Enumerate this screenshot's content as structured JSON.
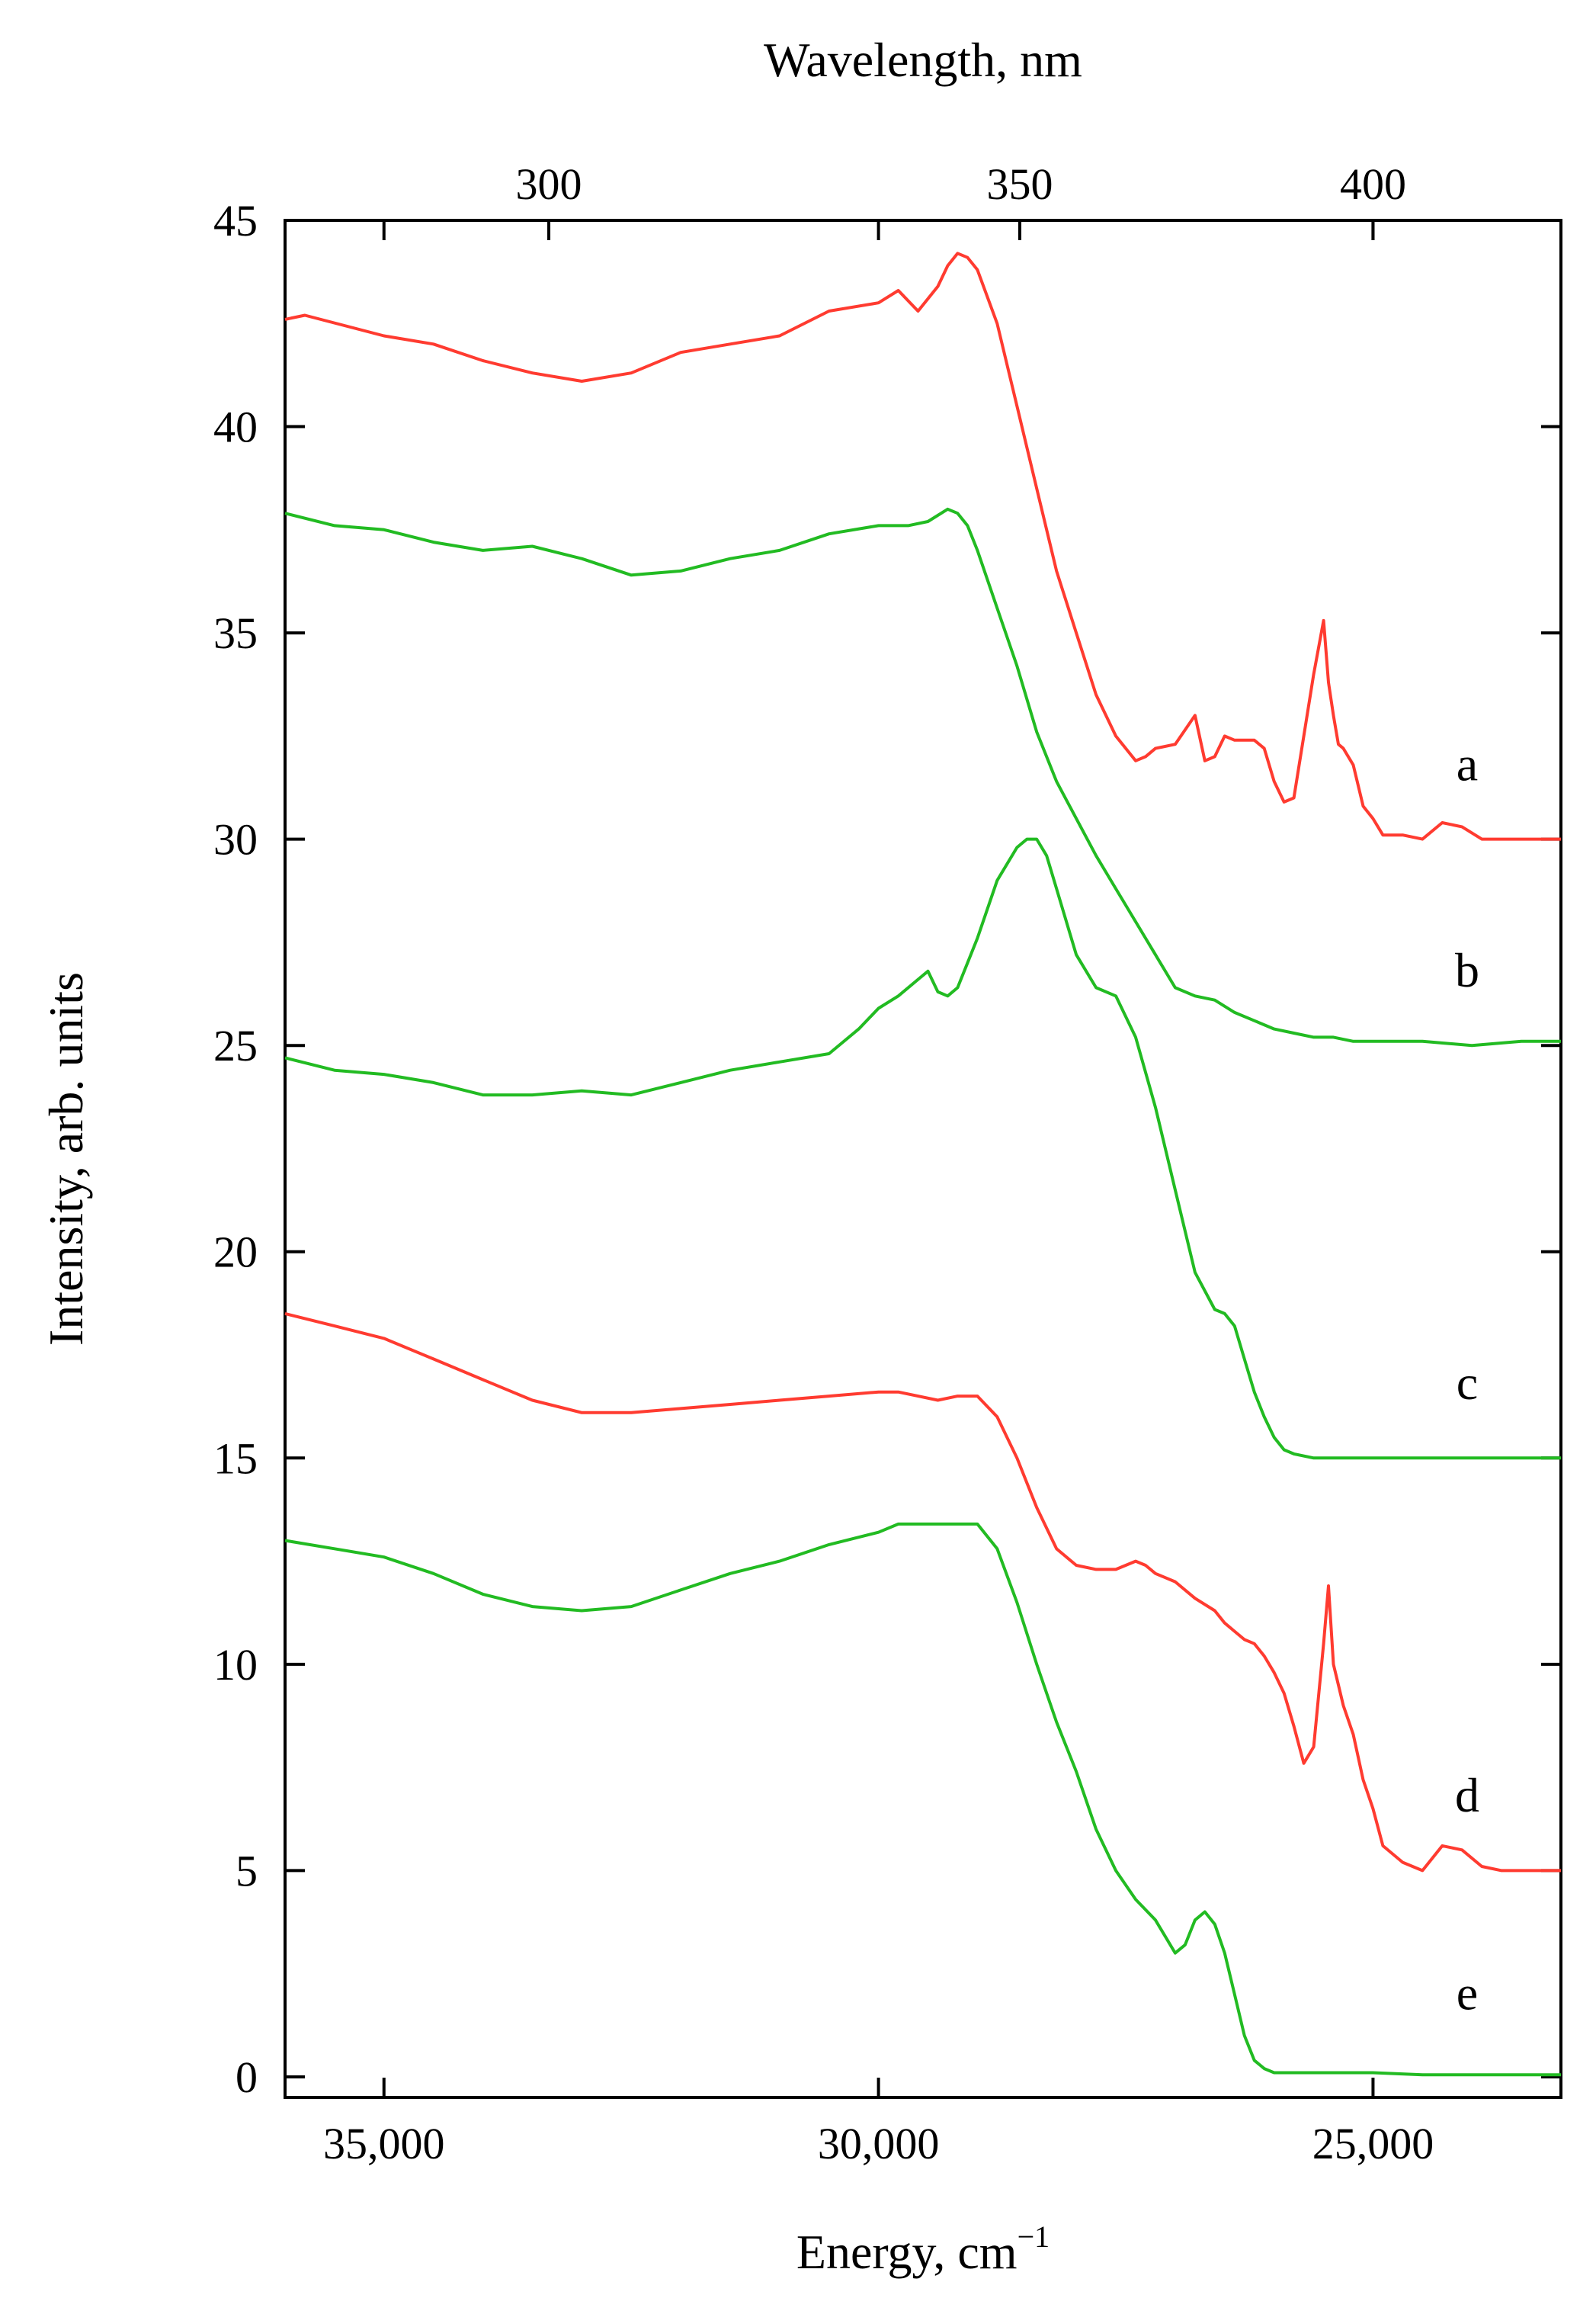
{
  "chart_data": {
    "type": "line",
    "title": "",
    "xlabel": "Energy, cm",
    "xlabel_superscript": "−1",
    "ylabel": "Intensity, arb. units",
    "x2label": "Wavelength, nm",
    "xlim": [
      36000,
      23100
    ],
    "ylim": [
      -0.5,
      45
    ],
    "x_ticks": [
      {
        "value": 35000,
        "label": "35,000"
      },
      {
        "value": 30000,
        "label": "30,000"
      },
      {
        "value": 25000,
        "label": "25,000"
      }
    ],
    "y_ticks": [
      {
        "value": 0,
        "label": "0"
      },
      {
        "value": 5,
        "label": "5"
      },
      {
        "value": 10,
        "label": "10"
      },
      {
        "value": 15,
        "label": "15"
      },
      {
        "value": 20,
        "label": "20"
      },
      {
        "value": 25,
        "label": "25"
      },
      {
        "value": 30,
        "label": "30"
      },
      {
        "value": 35,
        "label": "35"
      },
      {
        "value": 40,
        "label": "40"
      },
      {
        "value": 45,
        "label": "45"
      }
    ],
    "x2_ticks": [
      {
        "value": 300,
        "label": "300"
      },
      {
        "value": 350,
        "label": "350"
      },
      {
        "value": 400,
        "label": "400"
      }
    ],
    "grid": false,
    "series": [
      {
        "name": "a",
        "color": "#ff3b30",
        "label_y": 31.8,
        "x": [
          36000,
          35800,
          35000,
          34500,
          34000,
          33500,
          33000,
          32500,
          32000,
          31500,
          31000,
          30500,
          30000,
          29800,
          29600,
          29400,
          29300,
          29200,
          29100,
          29000,
          28800,
          28600,
          28400,
          28200,
          28000,
          27800,
          27600,
          27400,
          27300,
          27200,
          27000,
          26800,
          26700,
          26600,
          26500,
          26400,
          26300,
          26200,
          26100,
          26000,
          25900,
          25800,
          25700,
          25600,
          25500,
          25450,
          25400,
          25350,
          25300,
          25200,
          25100,
          25000,
          24900,
          24700,
          24500,
          24300,
          24100,
          23900,
          23700,
          23500,
          23100
        ],
        "y": [
          42.6,
          42.7,
          42.2,
          42.0,
          41.6,
          41.3,
          41.1,
          41.3,
          41.8,
          42.0,
          42.2,
          42.8,
          43.0,
          43.3,
          42.8,
          43.4,
          43.9,
          44.2,
          44.1,
          43.8,
          42.5,
          40.5,
          38.5,
          36.5,
          35.0,
          33.5,
          32.5,
          31.9,
          32.0,
          32.2,
          32.3,
          33.0,
          31.9,
          32.0,
          32.5,
          32.4,
          32.4,
          32.4,
          32.2,
          31.4,
          30.9,
          31.0,
          32.5,
          34.0,
          35.3,
          33.8,
          33.0,
          32.3,
          32.2,
          31.8,
          30.8,
          30.5,
          30.1,
          30.1,
          30.0,
          30.4,
          30.3,
          30.0,
          30.0,
          30.0,
          30.0
        ]
      },
      {
        "name": "b",
        "color": "#22bb22",
        "label_y": 26.8,
        "x": [
          36000,
          35500,
          35000,
          34500,
          34000,
          33500,
          33000,
          32500,
          32000,
          31500,
          31000,
          30500,
          30000,
          29700,
          29500,
          29300,
          29200,
          29100,
          29000,
          28800,
          28600,
          28400,
          28200,
          28000,
          27800,
          27600,
          27400,
          27200,
          27000,
          26800,
          26600,
          26400,
          26200,
          26000,
          25800,
          25600,
          25400,
          25200,
          25000,
          24500,
          24000,
          23500,
          23100
        ],
        "y": [
          37.9,
          37.6,
          37.5,
          37.2,
          37.0,
          37.1,
          36.8,
          36.4,
          36.5,
          36.8,
          37.0,
          37.4,
          37.6,
          37.6,
          37.7,
          38.0,
          37.9,
          37.6,
          37.0,
          35.6,
          34.2,
          32.6,
          31.4,
          30.5,
          29.6,
          28.8,
          28.0,
          27.2,
          26.4,
          26.2,
          26.1,
          25.8,
          25.6,
          25.4,
          25.3,
          25.2,
          25.2,
          25.1,
          25.1,
          25.1,
          25.0,
          25.1,
          25.1
        ]
      },
      {
        "name": "c",
        "color": "#22bb22",
        "label_y": 16.8,
        "x": [
          36000,
          35500,
          35000,
          34500,
          34000,
          33500,
          33000,
          32500,
          32000,
          31500,
          31000,
          30500,
          30200,
          30000,
          29800,
          29600,
          29500,
          29400,
          29300,
          29200,
          29000,
          28800,
          28600,
          28500,
          28400,
          28300,
          28200,
          28000,
          27800,
          27600,
          27400,
          27200,
          27000,
          26800,
          26600,
          26500,
          26400,
          26300,
          26200,
          26100,
          26000,
          25900,
          25800,
          25600,
          25400,
          25000,
          24500,
          24000,
          23500,
          23100
        ],
        "y": [
          24.7,
          24.4,
          24.3,
          24.1,
          23.8,
          23.8,
          23.9,
          23.8,
          24.1,
          24.4,
          24.6,
          24.8,
          25.4,
          25.9,
          26.2,
          26.6,
          26.8,
          26.3,
          26.2,
          26.4,
          27.6,
          29.0,
          29.8,
          30.0,
          30.0,
          29.6,
          28.8,
          27.2,
          26.4,
          26.2,
          25.2,
          23.5,
          21.5,
          19.5,
          18.6,
          18.5,
          18.2,
          17.4,
          16.6,
          16.0,
          15.5,
          15.2,
          15.1,
          15.0,
          15.0,
          15.0,
          15.0,
          15.0,
          15.0,
          15.0
        ]
      },
      {
        "name": "d",
        "color": "#ff3b30",
        "label_y": 6.8,
        "x": [
          36000,
          35500,
          35000,
          34500,
          34000,
          33500,
          33000,
          32500,
          32000,
          31500,
          31000,
          30500,
          30000,
          29800,
          29600,
          29400,
          29200,
          29000,
          28800,
          28600,
          28400,
          28200,
          28000,
          27800,
          27600,
          27400,
          27300,
          27200,
          27000,
          26800,
          26600,
          26500,
          26400,
          26300,
          26200,
          26100,
          26000,
          25900,
          25800,
          25700,
          25600,
          25500,
          25450,
          25400,
          25350,
          25300,
          25200,
          25100,
          25000,
          24900,
          24700,
          24500,
          24300,
          24100,
          23900,
          23700,
          23500,
          23100
        ],
        "y": [
          18.5,
          18.2,
          17.9,
          17.4,
          16.9,
          16.4,
          16.1,
          16.1,
          16.2,
          16.3,
          16.4,
          16.5,
          16.6,
          16.6,
          16.5,
          16.4,
          16.5,
          16.5,
          16.0,
          15.0,
          13.8,
          12.8,
          12.4,
          12.3,
          12.3,
          12.5,
          12.4,
          12.2,
          12.0,
          11.6,
          11.3,
          11.0,
          10.8,
          10.6,
          10.5,
          10.2,
          9.8,
          9.3,
          8.5,
          7.6,
          8.0,
          10.5,
          11.9,
          10.0,
          9.5,
          9.0,
          8.3,
          7.2,
          6.5,
          5.6,
          5.2,
          5.0,
          5.6,
          5.5,
          5.1,
          5.0,
          5.0,
          5.0
        ]
      },
      {
        "name": "e",
        "color": "#22bb22",
        "label_y": 2.0,
        "x": [
          36000,
          35500,
          35000,
          34500,
          34000,
          33500,
          33000,
          32500,
          32000,
          31500,
          31000,
          30500,
          30000,
          29800,
          29500,
          29200,
          29000,
          28800,
          28600,
          28400,
          28200,
          28000,
          27800,
          27600,
          27400,
          27200,
          27000,
          26900,
          26800,
          26700,
          26600,
          26500,
          26400,
          26300,
          26200,
          26100,
          26000,
          25900,
          25800,
          25500,
          25000,
          24500,
          24000,
          23500,
          23100
        ],
        "y": [
          13.0,
          12.8,
          12.6,
          12.2,
          11.7,
          11.4,
          11.3,
          11.4,
          11.8,
          12.2,
          12.5,
          12.9,
          13.2,
          13.4,
          13.4,
          13.4,
          13.4,
          12.8,
          11.5,
          10.0,
          8.6,
          7.4,
          6.0,
          5.0,
          4.3,
          3.8,
          3.0,
          3.2,
          3.8,
          4.0,
          3.7,
          3.0,
          2.0,
          1.0,
          0.4,
          0.2,
          0.1,
          0.1,
          0.1,
          0.1,
          0.1,
          0.05,
          0.05,
          0.05,
          0.05
        ]
      }
    ]
  }
}
